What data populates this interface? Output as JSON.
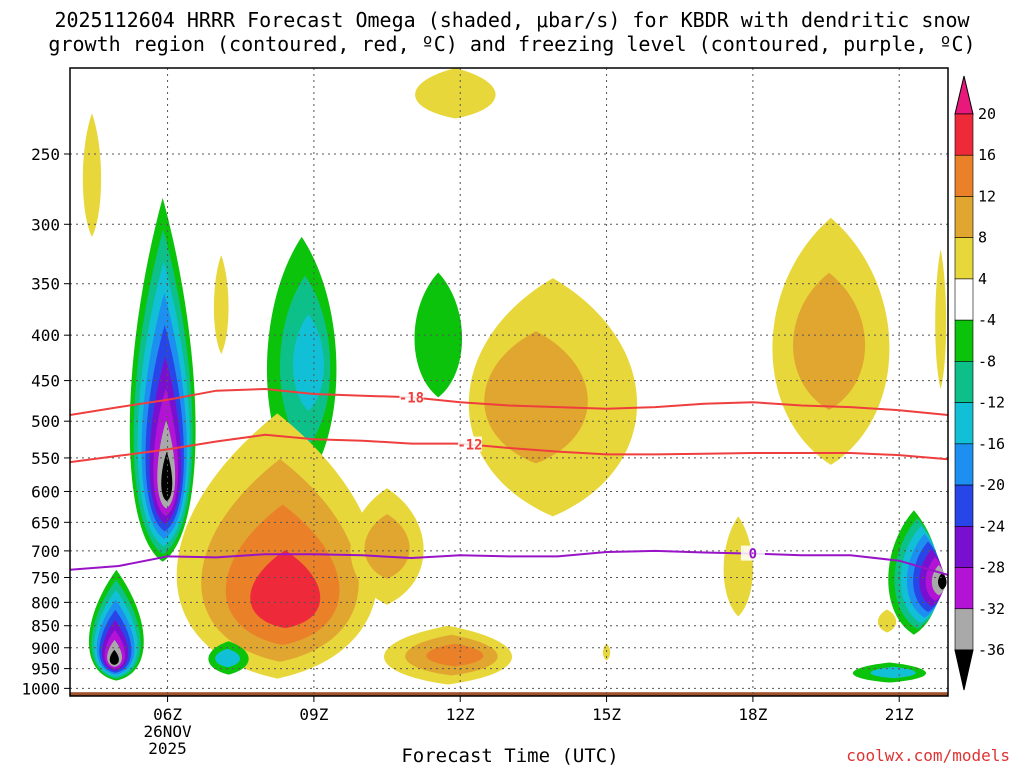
{
  "title": {
    "line1": "2025112604 HRRR Forecast Omega (shaded, μbar/s) for KBDR with dendritic snow",
    "line2": "growth region (contoured, red, ºC) and freezing level (contoured, purple, ºC)"
  },
  "footer": {
    "xlabel": "Forecast Time (UTC)",
    "credit": "coolwx.com/models"
  },
  "chart_data": {
    "type": "heatmap",
    "ylabel_units": "hPa",
    "y_ticks": [
      250,
      300,
      350,
      400,
      450,
      500,
      550,
      600,
      650,
      700,
      750,
      800,
      850,
      900,
      950,
      1000
    ],
    "x_ticks": [
      {
        "hour": 6,
        "label": "06Z",
        "date_line1": "26NOV",
        "date_line2": "2025"
      },
      {
        "hour": 9,
        "label": "09Z"
      },
      {
        "hour": 12,
        "label": "12Z"
      },
      {
        "hour": 15,
        "label": "15Z"
      },
      {
        "hour": 18,
        "label": "18Z"
      },
      {
        "hour": 21,
        "label": "21Z"
      }
    ],
    "x_range_hours": [
      4.0,
      22.0
    ],
    "y_range_hpa": [
      200,
      1020
    ],
    "colorbar": {
      "labels": [
        "20",
        "16",
        "12",
        "8",
        "4",
        "-4",
        "-8",
        "-12",
        "-16",
        "-20",
        "-24",
        "-28",
        "-32",
        "-36"
      ],
      "segments": [
        {
          "from": 16,
          "to": 20,
          "color": "#ee2a3a"
        },
        {
          "from": 12,
          "to": 16,
          "color": "#ea8129"
        },
        {
          "from": 8,
          "to": 12,
          "color": "#e0a62f"
        },
        {
          "from": 4,
          "to": 8,
          "color": "#e8d73a"
        },
        {
          "from": -4,
          "to": 4,
          "color": "#ffffff"
        },
        {
          "from": -8,
          "to": -4,
          "color": "#0cc30c"
        },
        {
          "from": -12,
          "to": -8,
          "color": "#0dc08a"
        },
        {
          "from": -16,
          "to": -12,
          "color": "#11c0d6"
        },
        {
          "from": -20,
          "to": -16,
          "color": "#1d8ff0"
        },
        {
          "from": -24,
          "to": -20,
          "color": "#2845e8"
        },
        {
          "from": -28,
          "to": -24,
          "color": "#7a10cf"
        },
        {
          "from": -32,
          "to": -28,
          "color": "#b213d4"
        },
        {
          "from": -36,
          "to": -32,
          "color": "#a9a9a9"
        }
      ],
      "top_arrow_color": "#e8197a",
      "bottom_arrow_color": "#000000"
    },
    "level_colors": {
      "y4": "#e8d73a",
      "y8": "#e0a62f",
      "y12": "#ea8129",
      "y16": "#ee2a3a",
      "g4": "#0cc30c",
      "g8": "#0dc08a",
      "g12": "#11c0d6",
      "g16": "#1d8ff0",
      "g20": "#2845e8",
      "g24": "#7a10cf",
      "g28": "#b213d4",
      "g32": "#a9a9a9",
      "g36": "#000000"
    },
    "omega_features": [
      {
        "center_hour": 4.5,
        "levels": [
          "y4"
        ],
        "x0": 4.2,
        "x1": 4.7,
        "p_top": 225,
        "p_bot": 310
      },
      {
        "center_hour": 6.0,
        "levels": [
          "g4",
          "g8",
          "g12",
          "g16",
          "g20",
          "g24",
          "g28",
          "g32",
          "g36"
        ],
        "x0": 5.0,
        "x1": 6.8,
        "p_top": 280,
        "p_bot": 720,
        "peak_p": 600
      },
      {
        "center_hour": 4.9,
        "levels": [
          "g4",
          "g8",
          "g12",
          "g16",
          "g20",
          "g24",
          "g28",
          "g32",
          "g36"
        ],
        "x0": 4.2,
        "x1": 5.7,
        "p_top": 735,
        "p_bot": 980,
        "peak_p": 935
      },
      {
        "center_hour": 7.1,
        "levels": [
          "y4"
        ],
        "x0": 6.9,
        "x1": 7.3,
        "p_top": 325,
        "p_bot": 420
      },
      {
        "center_hour": 9.0,
        "levels": [
          "g4",
          "g8",
          "g12"
        ],
        "x0": 7.8,
        "x1": 9.7,
        "p_top": 310,
        "p_bot": 595
      },
      {
        "center_hour": 8.5,
        "levels": [
          "y4",
          "y8",
          "y12",
          "y16"
        ],
        "x0": 5.5,
        "x1": 11.0,
        "p_top": 490,
        "p_bot": 975,
        "peak_p": 810
      },
      {
        "center_hour": 10.5,
        "levels": [
          "y4",
          "y8"
        ],
        "x0": 9.5,
        "x1": 11.5,
        "p_top": 595,
        "p_bot": 805
      },
      {
        "center_hour": 7.2,
        "levels": [
          "g4",
          "g12"
        ],
        "x0": 6.7,
        "x1": 7.8,
        "p_top": 885,
        "p_bot": 965
      },
      {
        "center_hour": 11.9,
        "levels": [
          "g4"
        ],
        "x0": 10.9,
        "x1": 12.2,
        "p_top": 340,
        "p_bot": 470
      },
      {
        "center_hour": 11.5,
        "levels": [
          "y4"
        ],
        "x0": 10.8,
        "x1": 13.0,
        "p_top": 200,
        "p_bot": 228
      },
      {
        "center_hour": 13.0,
        "levels": [
          "y4",
          "y8"
        ],
        "x0": 11.6,
        "x1": 16.2,
        "p_top": 345,
        "p_bot": 640
      },
      {
        "center_hour": 12.0,
        "levels": [
          "y4",
          "y8",
          "y12"
        ],
        "x0": 10.0,
        "x1": 13.5,
        "p_top": 850,
        "p_bot": 990
      },
      {
        "center_hour": 19.5,
        "levels": [
          "y4",
          "y8"
        ],
        "x0": 18.0,
        "x1": 21.2,
        "p_top": 295,
        "p_bot": 560
      },
      {
        "center_hour": 17.7,
        "levels": [
          "y4"
        ],
        "x0": 17.3,
        "x1": 18.1,
        "p_top": 640,
        "p_bot": 830
      },
      {
        "center_hour": 15.0,
        "levels": [
          "y4"
        ],
        "x0": 14.9,
        "x1": 15.1,
        "p_top": 890,
        "p_bot": 930
      },
      {
        "center_hour": 20.8,
        "levels": [
          "y4"
        ],
        "x0": 20.5,
        "x1": 21.0,
        "p_top": 815,
        "p_bot": 865
      },
      {
        "center_hour": 21.0,
        "levels": [
          "g4",
          "g12"
        ],
        "x0": 19.8,
        "x1": 21.8,
        "p_top": 935,
        "p_bot": 985
      },
      {
        "center_hour": 22.0,
        "levels": [
          "g4",
          "g8",
          "g12",
          "g16",
          "g20",
          "g24",
          "g28",
          "g32",
          "g36"
        ],
        "x0": 20.6,
        "x1": 22.0,
        "p_top": 630,
        "p_bot": 870,
        "peak_p": 760
      },
      {
        "center_hour": 22.0,
        "levels": [
          "y4"
        ],
        "x0": 21.7,
        "x1": 22.0,
        "p_top": 320,
        "p_bot": 460
      }
    ],
    "contours": [
      {
        "name": "dgz-minus18",
        "label": "-18",
        "color": "#ef3e3e",
        "label_hour": 11.0,
        "points": [
          [
            4.0,
            492
          ],
          [
            5.0,
            482
          ],
          [
            6.0,
            473
          ],
          [
            7.0,
            462
          ],
          [
            8.0,
            460
          ],
          [
            9.0,
            466
          ],
          [
            10.0,
            468
          ],
          [
            11.0,
            470
          ],
          [
            12.0,
            476
          ],
          [
            13.0,
            480
          ],
          [
            14.0,
            482
          ],
          [
            15.0,
            484
          ],
          [
            16.0,
            482
          ],
          [
            17.0,
            478
          ],
          [
            18.0,
            476
          ],
          [
            19.0,
            480
          ],
          [
            20.0,
            482
          ],
          [
            21.0,
            486
          ],
          [
            22.0,
            492
          ]
        ]
      },
      {
        "name": "dgz-minus12",
        "label": "-12",
        "color": "#ef3e3e",
        "label_hour": 12.2,
        "points": [
          [
            4.0,
            556
          ],
          [
            5.0,
            547
          ],
          [
            6.0,
            538
          ],
          [
            7.0,
            527
          ],
          [
            8.0,
            518
          ],
          [
            9.0,
            524
          ],
          [
            10.0,
            526
          ],
          [
            11.0,
            530
          ],
          [
            12.0,
            530
          ],
          [
            13.0,
            536
          ],
          [
            14.0,
            541
          ],
          [
            15.0,
            545
          ],
          [
            16.0,
            545
          ],
          [
            17.0,
            544
          ],
          [
            18.0,
            543
          ],
          [
            19.0,
            543
          ],
          [
            20.0,
            543
          ],
          [
            21.0,
            546
          ],
          [
            22.0,
            552
          ]
        ]
      },
      {
        "name": "freezing-level",
        "label": "0",
        "color": "#9914c7",
        "label_hour": 18.0,
        "points": [
          [
            4.0,
            735
          ],
          [
            5.0,
            728
          ],
          [
            6.0,
            710
          ],
          [
            7.0,
            712
          ],
          [
            8.0,
            706
          ],
          [
            9.0,
            706
          ],
          [
            10.0,
            708
          ],
          [
            11.0,
            713
          ],
          [
            12.0,
            708
          ],
          [
            13.0,
            710
          ],
          [
            14.0,
            710
          ],
          [
            15.0,
            702
          ],
          [
            16.0,
            700
          ],
          [
            17.0,
            703
          ],
          [
            18.0,
            705
          ],
          [
            19.0,
            708
          ],
          [
            20.0,
            708
          ],
          [
            21.0,
            718
          ],
          [
            22.0,
            745
          ]
        ]
      }
    ],
    "ground": {
      "color": "#a0522d",
      "top_hpa": 1010
    }
  }
}
